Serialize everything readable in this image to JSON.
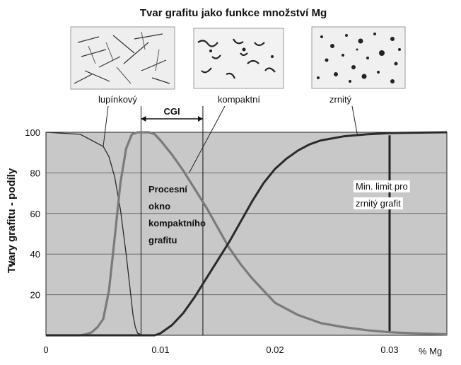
{
  "chart_data": {
    "type": "line",
    "title": "Tvar grafitu jako funkce množství Mg",
    "xlabel": "% Mg",
    "ylabel": "Tvary grafitu - podíly",
    "yunit": "%",
    "xlim": [
      0,
      0.035
    ],
    "ylim": [
      0,
      100
    ],
    "xticks": [
      "0",
      "0.01",
      "0.02",
      "0.03"
    ],
    "yticks": [
      "20",
      "40",
      "60",
      "80",
      "100"
    ],
    "grid": true,
    "colors": {
      "plot_bg": "#c8c8c8",
      "curve_dark": "#2a2a2a",
      "curve_gray": "#7a7a7a",
      "grid": "#6a6a6a"
    },
    "series": [
      {
        "name": "lupínkový",
        "x": [
          0,
          0.003,
          0.005,
          0.0055,
          0.006,
          0.0065,
          0.007,
          0.0073,
          0.0076,
          0.0078,
          0.008,
          0.0085,
          0.009
        ],
        "y": [
          100,
          99,
          93,
          88,
          78,
          62,
          40,
          25,
          10,
          4,
          1,
          0,
          0
        ]
      },
      {
        "name": "kompaktní",
        "x": [
          0,
          0.003,
          0.0035,
          0.004,
          0.0045,
          0.005,
          0.0055,
          0.006,
          0.0065,
          0.007,
          0.0075,
          0.008,
          0.009,
          0.0095,
          0.01,
          0.011,
          0.012,
          0.013,
          0.014,
          0.015,
          0.016,
          0.017,
          0.018,
          0.019,
          0.02,
          0.022,
          0.024,
          0.026,
          0.028,
          0.03,
          0.032,
          0.035
        ],
        "y": [
          0,
          0,
          0.5,
          1.5,
          4,
          8,
          22,
          48,
          75,
          92,
          99,
          100,
          100,
          99,
          96,
          89,
          81,
          72,
          63,
          53,
          43,
          35,
          28,
          22,
          16,
          10,
          6,
          4,
          2.5,
          1.5,
          1,
          0.5
        ]
      },
      {
        "name": "zrnitý",
        "x": [
          0,
          0.009,
          0.0095,
          0.01,
          0.011,
          0.012,
          0.013,
          0.014,
          0.015,
          0.016,
          0.017,
          0.018,
          0.019,
          0.02,
          0.021,
          0.022,
          0.023,
          0.024,
          0.025,
          0.026,
          0.027,
          0.028,
          0.029,
          0.03,
          0.032,
          0.035
        ],
        "y": [
          0,
          0,
          0,
          1,
          5,
          11,
          19,
          28,
          37,
          46,
          56,
          66,
          75,
          82,
          87,
          91,
          94,
          96,
          97,
          98,
          98.5,
          99,
          99.3,
          99.6,
          99.8,
          100
        ]
      }
    ],
    "cgi_window": {
      "label": "CGI",
      "x_start": 0.0083,
      "x_end": 0.0137
    },
    "min_limit_x": 0.03,
    "annotations": {
      "process_window": [
        "Procesní",
        "okno",
        "kompaktního",
        "grafitu"
      ],
      "min_limit": [
        "Min. limit pro",
        "zrnitý grafit"
      ]
    }
  }
}
